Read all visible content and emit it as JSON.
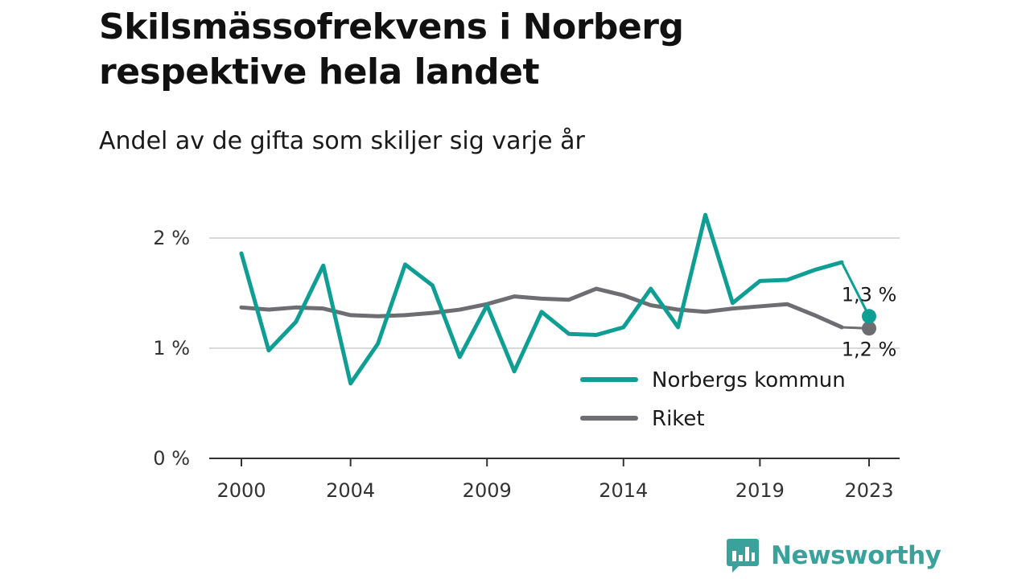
{
  "title_lines": [
    "Skilsmässofrekvens i Norberg",
    "respektive hela landet"
  ],
  "subtitle": "Andel av de gifta som skiljer sig varje år",
  "brand": {
    "name": "Newsworthy",
    "color": "#3aa29a",
    "icon": "newsworthy-bar-chart-icon"
  },
  "chart_data": {
    "type": "line",
    "title": "Skilsmässofrekvens i Norberg respektive hela landet",
    "subtitle": "Andel av de gifta som skiljer sig varje år",
    "x": [
      2000,
      2001,
      2002,
      2003,
      2004,
      2005,
      2006,
      2007,
      2008,
      2009,
      2010,
      2011,
      2012,
      2013,
      2014,
      2015,
      2016,
      2017,
      2018,
      2019,
      2020,
      2021,
      2022,
      2023
    ],
    "x_ticks": [
      2000,
      2004,
      2009,
      2014,
      2019,
      2023
    ],
    "x_tick_labels": [
      "2000",
      "2004",
      "2009",
      "2014",
      "2019",
      "2023"
    ],
    "xlim": [
      2000,
      2023
    ],
    "y_ticks": [
      0,
      1,
      2
    ],
    "y_tick_labels": [
      "0 %",
      "1 %",
      "2 %"
    ],
    "ylim": [
      0,
      2.2
    ],
    "grid": true,
    "legend_position": "bottom-right",
    "series": [
      {
        "name": "Norbergs kommun",
        "color": "#0f9e94",
        "values": [
          1.86,
          0.98,
          1.24,
          1.75,
          0.68,
          1.04,
          1.76,
          1.57,
          0.92,
          1.39,
          0.79,
          1.33,
          1.13,
          1.12,
          1.19,
          1.54,
          1.19,
          2.21,
          1.41,
          1.61,
          1.62,
          1.71,
          1.78,
          1.29
        ],
        "end_label": "1,3 %"
      },
      {
        "name": "Riket",
        "color": "#6e6d72",
        "values": [
          1.37,
          1.35,
          1.37,
          1.36,
          1.3,
          1.29,
          1.3,
          1.32,
          1.35,
          1.4,
          1.47,
          1.45,
          1.44,
          1.54,
          1.48,
          1.39,
          1.35,
          1.33,
          1.36,
          1.38,
          1.4,
          1.3,
          1.19,
          1.18
        ],
        "end_label": "1,2 %"
      }
    ]
  }
}
